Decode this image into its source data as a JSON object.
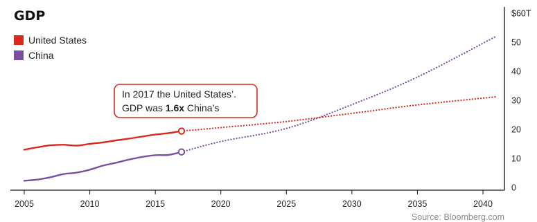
{
  "chart_data": {
    "type": "line",
    "title": "GDP",
    "xlabel": "",
    "ylabel": "",
    "xlim": [
      2005,
      2041
    ],
    "ylim": [
      0,
      60
    ],
    "x_ticks": [
      "2005",
      "2010",
      "2015",
      "2020",
      "2025",
      "2030",
      "2035",
      "2040"
    ],
    "y_ticks": [
      "$60T",
      "50",
      "40",
      "30",
      "20",
      "10",
      "0"
    ],
    "y_axis_side": "right",
    "legend_position": "top-left",
    "grid": false,
    "series": [
      {
        "name": "United States",
        "color": "#d9291c",
        "actual": [
          [
            2005,
            13.0
          ],
          [
            2006,
            13.8
          ],
          [
            2007,
            14.5
          ],
          [
            2008,
            14.7
          ],
          [
            2009,
            14.4
          ],
          [
            2010,
            15.0
          ],
          [
            2011,
            15.5
          ],
          [
            2012,
            16.2
          ],
          [
            2013,
            16.8
          ],
          [
            2014,
            17.5
          ],
          [
            2015,
            18.2
          ],
          [
            2016,
            18.7
          ],
          [
            2017,
            19.4
          ]
        ],
        "projection": [
          [
            2017,
            19.4
          ],
          [
            2020,
            20.6
          ],
          [
            2025,
            22.7
          ],
          [
            2030,
            25.5
          ],
          [
            2035,
            28.4
          ],
          [
            2041,
            31.2
          ]
        ]
      },
      {
        "name": "China",
        "color": "#7b4fa0",
        "actual": [
          [
            2005,
            2.3
          ],
          [
            2006,
            2.7
          ],
          [
            2007,
            3.5
          ],
          [
            2008,
            4.6
          ],
          [
            2009,
            5.1
          ],
          [
            2010,
            6.1
          ],
          [
            2011,
            7.5
          ],
          [
            2012,
            8.5
          ],
          [
            2013,
            9.6
          ],
          [
            2014,
            10.5
          ],
          [
            2015,
            11.1
          ],
          [
            2016,
            11.2
          ],
          [
            2017,
            12.2
          ]
        ],
        "projection": [
          [
            2017,
            12.2
          ],
          [
            2020,
            15.8
          ],
          [
            2025,
            20.3
          ],
          [
            2030,
            28.5
          ],
          [
            2035,
            38.0
          ],
          [
            2041,
            52.0
          ]
        ]
      }
    ],
    "annotation": {
      "line1": "In 2017 the United States’.",
      "line2_pre": "GDP was ",
      "line2_bold": "1.6x",
      "line2_post": " China’s",
      "border_color": "#d9291c"
    },
    "source": "Source: Bloomberg.com"
  }
}
